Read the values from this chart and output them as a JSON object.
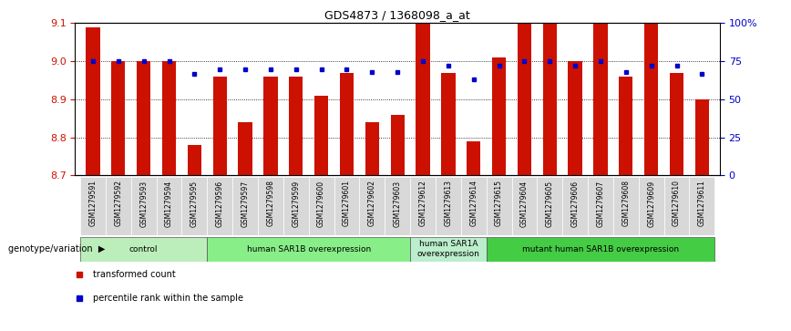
{
  "title": "GDS4873 / 1368098_a_at",
  "samples": [
    "GSM1279591",
    "GSM1279592",
    "GSM1279593",
    "GSM1279594",
    "GSM1279595",
    "GSM1279596",
    "GSM1279597",
    "GSM1279598",
    "GSM1279599",
    "GSM1279600",
    "GSM1279601",
    "GSM1279602",
    "GSM1279603",
    "GSM1279612",
    "GSM1279613",
    "GSM1279614",
    "GSM1279615",
    "GSM1279604",
    "GSM1279605",
    "GSM1279606",
    "GSM1279607",
    "GSM1279608",
    "GSM1279609",
    "GSM1279610",
    "GSM1279611"
  ],
  "transformed_count": [
    9.09,
    9.0,
    9.0,
    9.0,
    8.78,
    8.96,
    8.84,
    8.96,
    8.96,
    8.91,
    8.97,
    8.84,
    8.86,
    9.13,
    8.97,
    8.79,
    9.01,
    9.15,
    9.13,
    9.0,
    9.11,
    8.96,
    9.12,
    8.97,
    8.9
  ],
  "percentile_rank": [
    75,
    75,
    75,
    75,
    67,
    70,
    70,
    70,
    70,
    70,
    70,
    68,
    68,
    75,
    72,
    63,
    72,
    75,
    75,
    72,
    75,
    68,
    72,
    72,
    67
  ],
  "ylim_left": [
    8.7,
    9.1
  ],
  "ylim_right": [
    0,
    100
  ],
  "yticks_left": [
    8.7,
    8.8,
    8.9,
    9.0,
    9.1
  ],
  "yticks_right": [
    0,
    25,
    50,
    75,
    100
  ],
  "ytick_labels_right": [
    "0",
    "25",
    "50",
    "75",
    "100%"
  ],
  "groups": [
    {
      "label": "control",
      "start": 0,
      "end": 4,
      "color": "#bbeebb"
    },
    {
      "label": "human SAR1B overexpression",
      "start": 5,
      "end": 12,
      "color": "#88ee88"
    },
    {
      "label": "human SAR1A\noverexpression",
      "start": 13,
      "end": 15,
      "color": "#bbeecc"
    },
    {
      "label": "mutant human SAR1B overexpression",
      "start": 16,
      "end": 24,
      "color": "#44cc44"
    }
  ],
  "bar_color": "#cc1100",
  "dot_color": "#0000cc",
  "bar_bottom": 8.7,
  "genotype_label": "genotype/variation",
  "legend_items": [
    {
      "label": "transformed count",
      "color": "#cc1100"
    },
    {
      "label": "percentile rank within the sample",
      "color": "#0000cc"
    }
  ],
  "bar_width": 0.55,
  "background_color": "#ffffff",
  "xticklabel_bg": "#d8d8d8"
}
